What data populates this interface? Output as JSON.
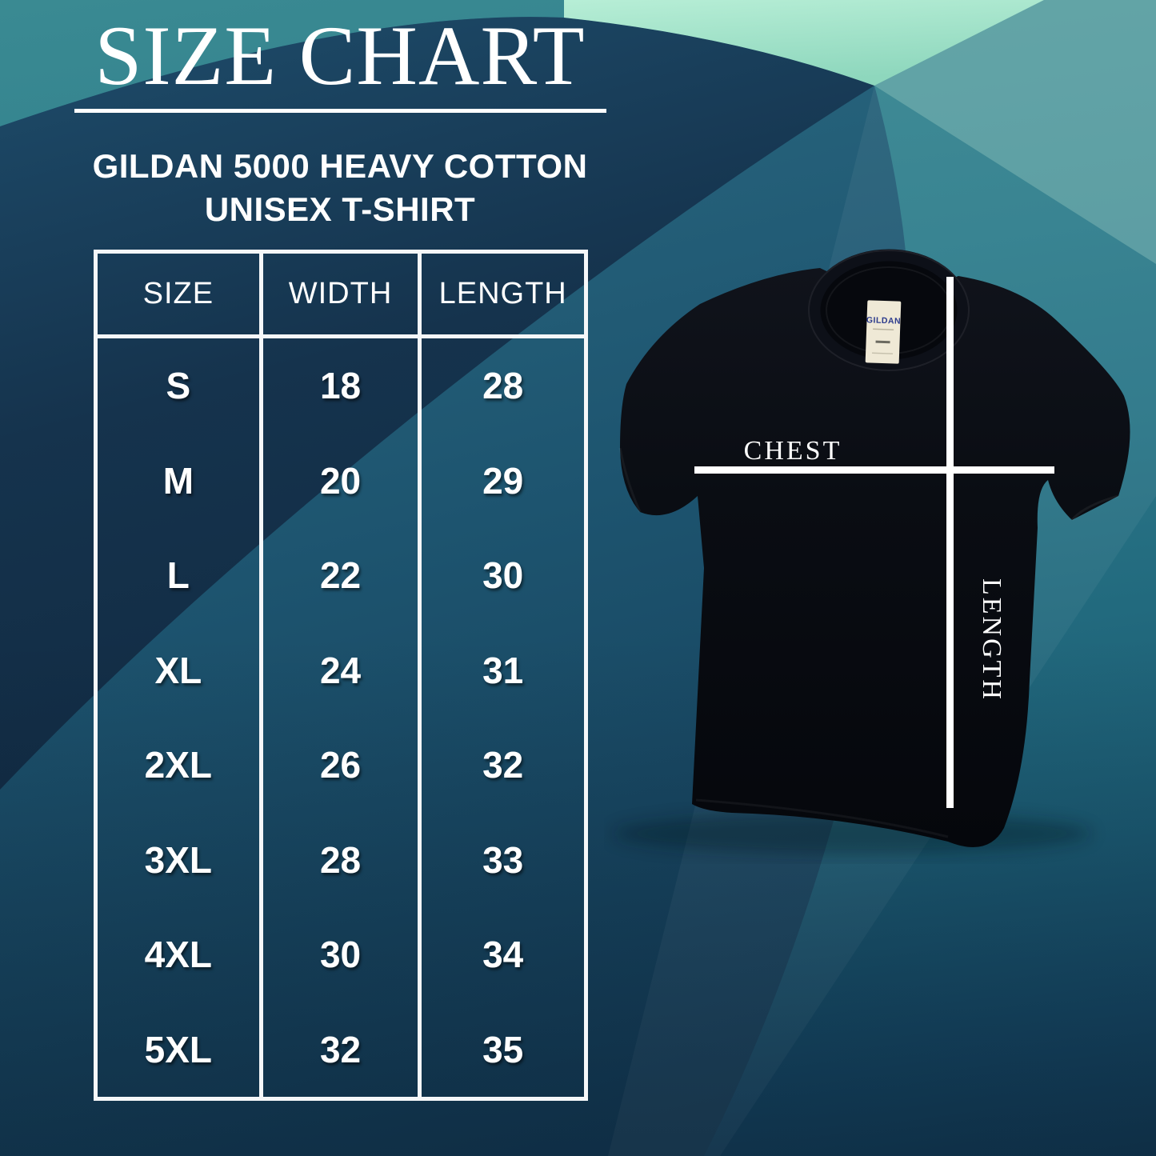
{
  "poster": {
    "title": "SIZE CHART",
    "subtitle_lines": [
      "GILDAN 5000 HEAVY COTTON",
      "UNISEX T-SHIRT"
    ]
  },
  "size_table": {
    "headers": [
      "SIZE",
      "WIDTH",
      "LENGTH"
    ],
    "rows": [
      {
        "size": "S",
        "width": "18",
        "length": "28"
      },
      {
        "size": "M",
        "width": "20",
        "length": "29"
      },
      {
        "size": "L",
        "width": "22",
        "length": "30"
      },
      {
        "size": "XL",
        "width": "24",
        "length": "31"
      },
      {
        "size": "2XL",
        "width": "26",
        "length": "32"
      },
      {
        "size": "3XL",
        "width": "28",
        "length": "33"
      },
      {
        "size": "4XL",
        "width": "30",
        "length": "34"
      },
      {
        "size": "5XL",
        "width": "32",
        "length": "35"
      }
    ]
  },
  "shirt": {
    "tag_brand": "GILDAN",
    "chest_label": "CHEST",
    "length_label": "LENGTH"
  },
  "colors": {
    "background_teal": "#2f7e8d",
    "background_navy": "#15334d",
    "steel_blue_band": "#255e78",
    "mint_accent": "#aee8d0",
    "table_border": "#f5f7f9",
    "text": "#ffffff",
    "shirt_black": "#0a0d13",
    "tag_cream": "#efe9d6",
    "tag_brand_blue": "#2b3a8c"
  },
  "chart_data": {
    "type": "table",
    "title": "SIZE CHART",
    "subtitle": "GILDAN 5000 HEAVY COTTON UNISEX T-SHIRT",
    "columns": [
      "SIZE",
      "WIDTH",
      "LENGTH"
    ],
    "rows": [
      [
        "S",
        18,
        28
      ],
      [
        "M",
        20,
        29
      ],
      [
        "L",
        22,
        30
      ],
      [
        "XL",
        24,
        31
      ],
      [
        "2XL",
        26,
        32
      ],
      [
        "3XL",
        28,
        33
      ],
      [
        "4XL",
        30,
        34
      ],
      [
        "5XL",
        32,
        35
      ]
    ]
  }
}
